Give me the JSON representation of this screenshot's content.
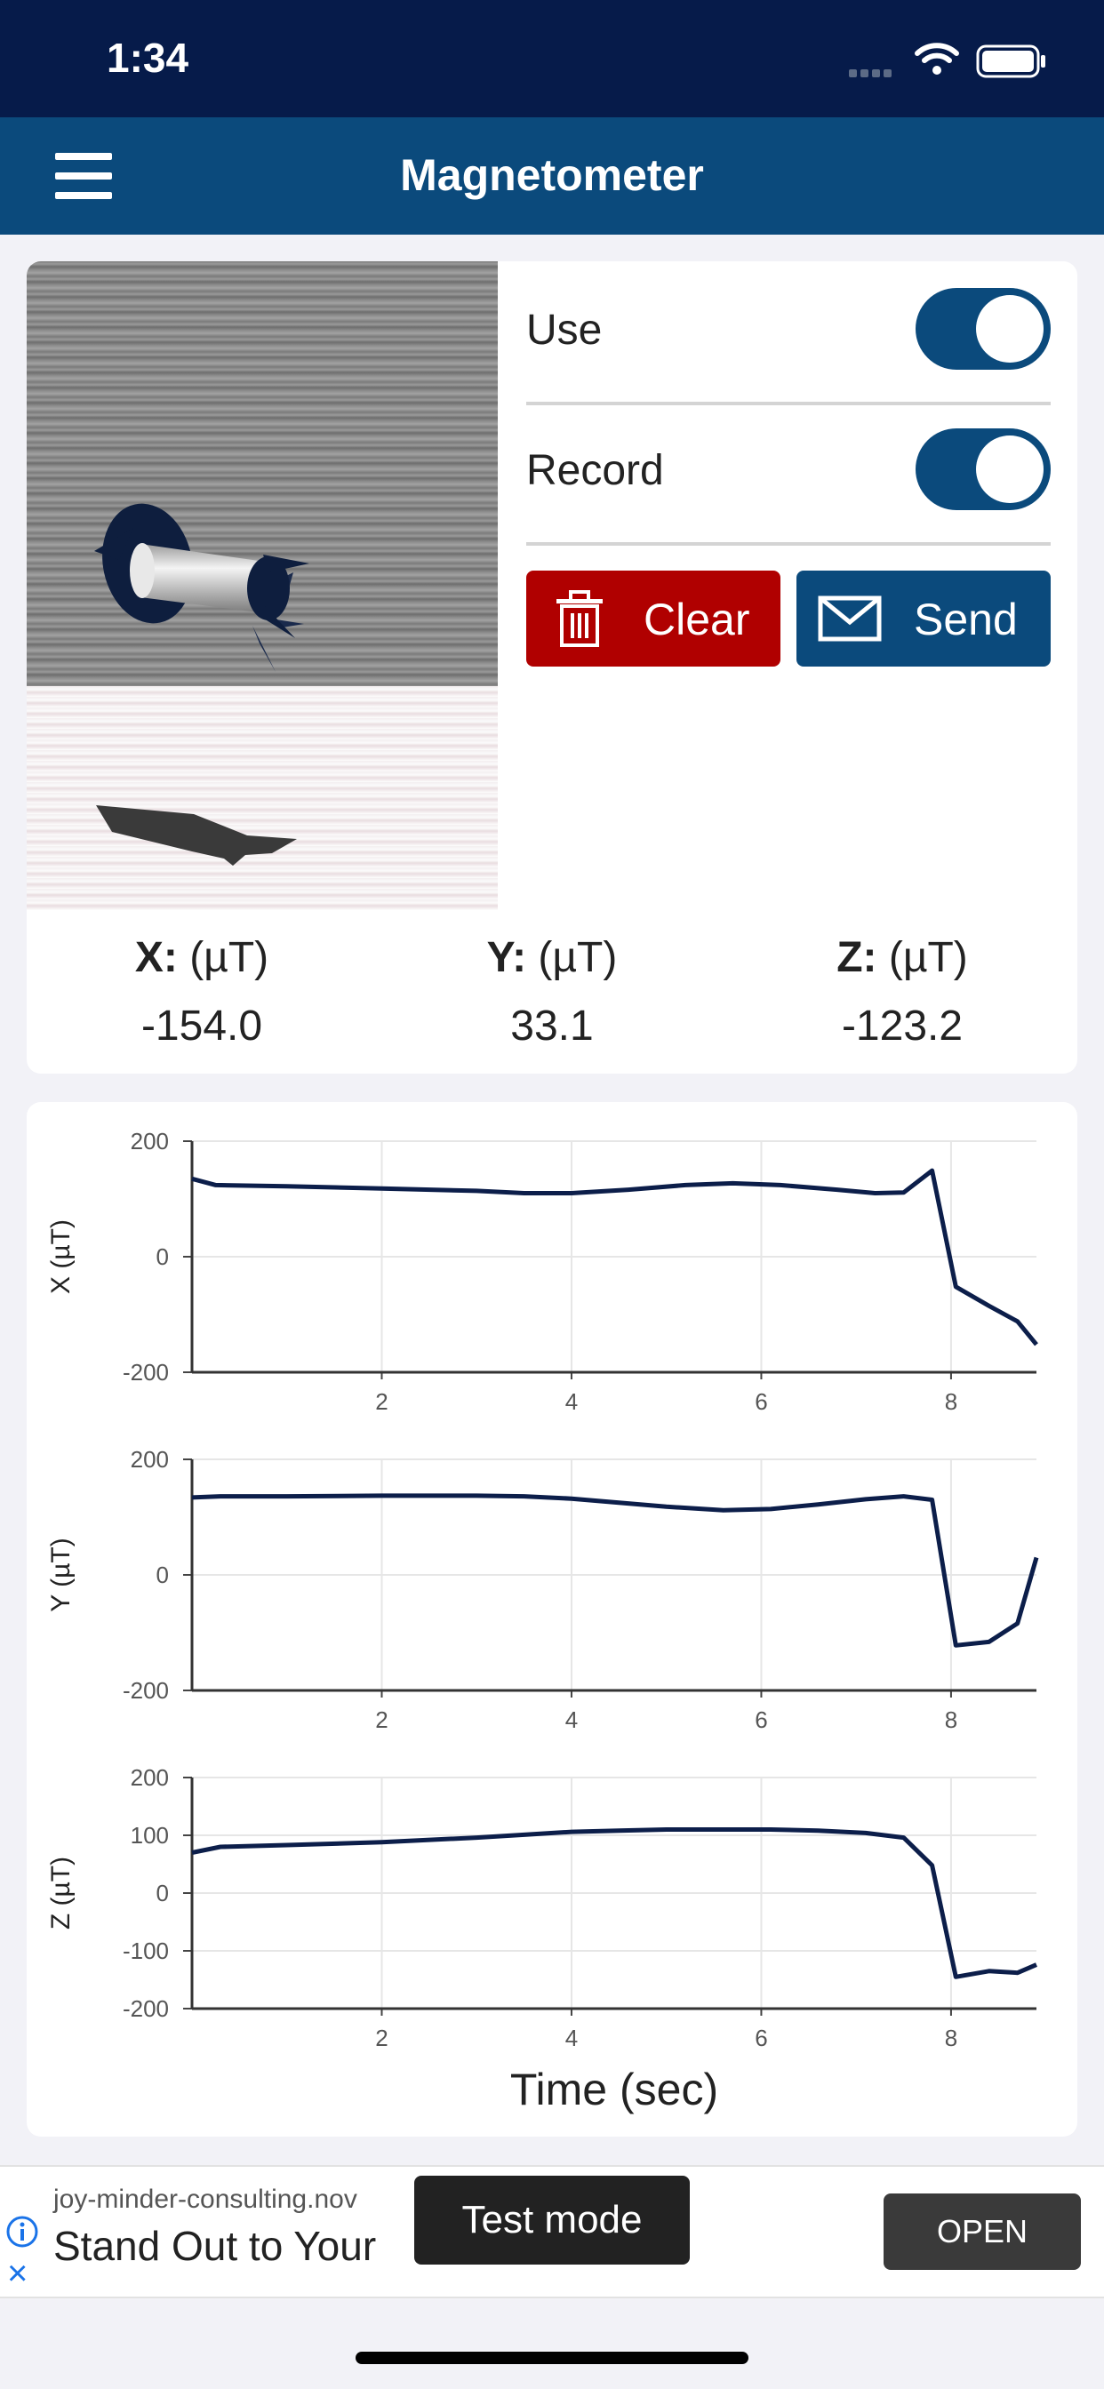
{
  "status": {
    "time": "1:34"
  },
  "nav": {
    "title": "Magnetometer",
    "menu_icon": "hamburger-menu-icon"
  },
  "controls": {
    "use_label": "Use",
    "use_on": true,
    "record_label": "Record",
    "record_on": true,
    "clear_label": "Clear",
    "send_label": "Send"
  },
  "colors": {
    "nav": "#0b4a7c",
    "status": "#061b4a",
    "clear": "#b00000",
    "accent": "#0b4a7c",
    "line": "#0c1e4a"
  },
  "readouts": {
    "x": {
      "label": "X:",
      "unit": "(µT)",
      "value": "-154.0"
    },
    "y": {
      "label": "Y:",
      "unit": "(µT)",
      "value": "33.1"
    },
    "z": {
      "label": "Z:",
      "unit": "(µT)",
      "value": "-123.2"
    }
  },
  "chart_data": [
    {
      "type": "line",
      "ylabel": "X (µT)",
      "xlabel": "",
      "xlim": [
        0,
        8.9
      ],
      "ylim": [
        -200,
        200
      ],
      "yticks": [
        200,
        0,
        -200
      ],
      "xticks": [
        2,
        4,
        6,
        8
      ],
      "grid": true,
      "x": [
        0,
        0.25,
        1,
        2,
        3,
        3.5,
        4,
        4.6,
        5.2,
        5.7,
        6.2,
        6.8,
        7.2,
        7.5,
        7.8,
        8.05,
        8.4,
        8.7,
        8.9
      ],
      "y": [
        135,
        124,
        122,
        118,
        114,
        110,
        110,
        116,
        124,
        127,
        124,
        116,
        110,
        111,
        149,
        -52,
        -85,
        -112,
        -152
      ]
    },
    {
      "type": "line",
      "ylabel": "Y (µT)",
      "xlabel": "",
      "xlim": [
        0,
        8.9
      ],
      "ylim": [
        -200,
        200
      ],
      "yticks": [
        200,
        0,
        -200
      ],
      "xticks": [
        2,
        4,
        6,
        8
      ],
      "grid": true,
      "x": [
        0,
        0.3,
        1,
        2,
        3,
        3.5,
        4,
        4.5,
        5,
        5.6,
        6.1,
        6.6,
        7.1,
        7.5,
        7.8,
        8.05,
        8.4,
        8.7,
        8.9
      ],
      "y": [
        134,
        136,
        136,
        137,
        137,
        136,
        132,
        125,
        118,
        112,
        114,
        122,
        131,
        136,
        130,
        -122,
        -116,
        -84,
        30
      ]
    },
    {
      "type": "line",
      "ylabel": "Z (µT)",
      "xlabel": "Time (sec)",
      "xlim": [
        0,
        8.9
      ],
      "ylim": [
        -200,
        200
      ],
      "yticks": [
        200,
        100,
        0,
        -100,
        -200
      ],
      "xticks": [
        2,
        4,
        6,
        8
      ],
      "grid": true,
      "x": [
        0,
        0.3,
        1,
        2,
        3,
        3.5,
        4,
        4.5,
        5,
        5.6,
        6.1,
        6.6,
        7.1,
        7.5,
        7.8,
        8.05,
        8.4,
        8.7,
        8.9
      ],
      "y": [
        70,
        80,
        83,
        88,
        96,
        101,
        106,
        108,
        110,
        110,
        110,
        108,
        104,
        96,
        48,
        -145,
        -135,
        -138,
        -124
      ]
    }
  ],
  "ad": {
    "url": "joy-minder-consulting.nov",
    "title": "Stand Out to Your",
    "test_mode": "Test mode",
    "open_label": "OPEN"
  }
}
